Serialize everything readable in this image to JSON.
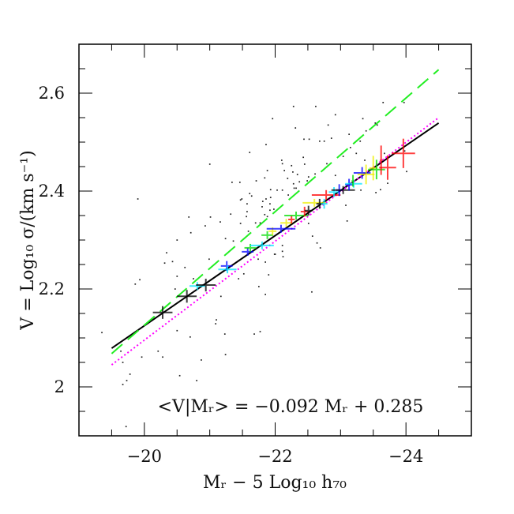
{
  "chart_data": {
    "type": "scatter",
    "title": "",
    "xlabel": "Mᵣ − 5 Log₁₀ h₇₀",
    "ylabel": "V = Log₁₀ σ/(km s⁻¹)",
    "annotation": "<V|Mᵣ> = −0.092 Mᵣ + 0.285",
    "xlim": [
      -19.0,
      -25.0
    ],
    "ylim": [
      1.9,
      2.7
    ],
    "xticks": [
      {
        "value": -20,
        "label": "−20"
      },
      {
        "value": -22,
        "label": "−22"
      },
      {
        "value": -24,
        "label": "−24"
      }
    ],
    "yticks": [
      {
        "value": 2.0,
        "label": "2"
      },
      {
        "value": 2.2,
        "label": "2.2"
      },
      {
        "value": 2.4,
        "label": "2.4"
      },
      {
        "value": 2.6,
        "label": "2.6"
      }
    ],
    "x_minor_step": 0.5,
    "y_minor_step": 0.05,
    "grid": false,
    "colors": {
      "black": "#000000",
      "cyan": "#00e5ff",
      "blue": "#0000ff",
      "green": "#00dd00",
      "yellow": "#f0f000",
      "red": "#ff0000",
      "magenta": "#ff00ff",
      "dashed_green": "#00dd00"
    },
    "lines": [
      {
        "style": "solid",
        "color": "#000000",
        "x": [
          -19.5,
          -24.5
        ],
        "y": [
          2.079,
          2.539
        ]
      },
      {
        "style": "dashed",
        "color": "#22ee22",
        "x": [
          -19.5,
          -24.5
        ],
        "y": [
          2.068,
          2.648
        ]
      },
      {
        "style": "dotted",
        "color": "#ff00ff",
        "x": [
          -19.5,
          -24.5
        ],
        "y": [
          2.045,
          2.55
        ]
      }
    ],
    "scatter": [
      [
        -21.86,
        2.495
      ],
      [
        -21.61,
        2.479
      ],
      [
        -21.0,
        2.455
      ],
      [
        -22.1,
        2.463
      ],
      [
        -21.34,
        2.418
      ],
      [
        -21.46,
        2.418
      ],
      [
        -19.9,
        2.384
      ],
      [
        -21.71,
        2.421
      ],
      [
        -21.64,
        2.39
      ],
      [
        -21.49,
        2.384
      ],
      [
        -21.57,
        2.374
      ],
      [
        -20.68,
        2.347
      ],
      [
        -21.32,
        2.353
      ],
      [
        -21.01,
        2.347
      ],
      [
        -21.16,
        2.337
      ],
      [
        -20.93,
        2.329
      ],
      [
        -20.71,
        2.315
      ],
      [
        -20.5,
        2.3
      ],
      [
        -21.24,
        2.303
      ],
      [
        -21.36,
        2.298
      ],
      [
        -20.34,
        2.274
      ],
      [
        -20.31,
        2.253
      ],
      [
        -20.43,
        2.256
      ],
      [
        -20.99,
        2.261
      ],
      [
        -20.62,
        2.244
      ],
      [
        -19.93,
        2.219
      ],
      [
        -19.86,
        2.21
      ],
      [
        -20.5,
        2.226
      ],
      [
        -20.75,
        2.221
      ],
      [
        -20.47,
        2.2
      ],
      [
        -21.17,
        2.185
      ],
      [
        -21.75,
        2.205
      ],
      [
        -21.85,
        2.189
      ],
      [
        -21.9,
        2.229
      ],
      [
        -21.1,
        2.137
      ],
      [
        -21.09,
        2.129
      ],
      [
        -19.35,
        2.111
      ],
      [
        -20.5,
        2.115
      ],
      [
        -20.7,
        2.102
      ],
      [
        -21.23,
        2.108
      ],
      [
        -21.68,
        2.108
      ],
      [
        -20.21,
        2.073
      ],
      [
        -20.28,
        2.061
      ],
      [
        -19.96,
        2.061
      ],
      [
        -19.64,
        2.073
      ],
      [
        -19.67,
        2.05
      ],
      [
        -20.87,
        2.055
      ],
      [
        -21.24,
        2.066
      ],
      [
        -19.78,
        2.026
      ],
      [
        -19.73,
        2.013
      ],
      [
        -19.67,
        2.005
      ],
      [
        -20.54,
        2.023
      ],
      [
        -20.8,
        2.013
      ],
      [
        -19.72,
        1.919
      ],
      [
        -21.99,
        2.271
      ],
      [
        -22.12,
        2.266
      ],
      [
        -21.52,
        2.231
      ],
      [
        -21.44,
        2.221
      ],
      [
        -21.85,
        2.255
      ],
      [
        -23.97,
        2.581
      ],
      [
        -23.53,
        2.539
      ],
      [
        -23.56,
        2.535
      ],
      [
        -22.81,
        2.535
      ],
      [
        -22.31,
        2.529
      ],
      [
        -23.39,
        2.523
      ],
      [
        -23.13,
        2.516
      ],
      [
        -22.86,
        2.508
      ],
      [
        -22.44,
        2.506
      ],
      [
        -22.52,
        2.506
      ],
      [
        -22.68,
        2.502
      ],
      [
        -22.75,
        2.502
      ],
      [
        -23.3,
        2.502
      ],
      [
        -23.15,
        2.489
      ],
      [
        -23.24,
        2.477
      ],
      [
        -23.04,
        2.471
      ],
      [
        -22.43,
        2.469
      ],
      [
        -23.37,
        2.463
      ],
      [
        -22.79,
        2.456
      ],
      [
        -22.11,
        2.456
      ],
      [
        -22.45,
        2.455
      ],
      [
        -22.25,
        2.452
      ],
      [
        -21.88,
        2.442
      ],
      [
        -22.14,
        2.442
      ],
      [
        -22.61,
        2.435
      ],
      [
        -22.27,
        2.439
      ],
      [
        -22.34,
        2.434
      ],
      [
        -22.92,
        2.432
      ],
      [
        -21.84,
        2.427
      ],
      [
        -22.19,
        2.426
      ],
      [
        -22.51,
        2.429
      ],
      [
        -22.37,
        2.419
      ],
      [
        -22.49,
        2.421
      ],
      [
        -22.28,
        2.415
      ],
      [
        -22.29,
        2.406
      ],
      [
        -22.32,
        2.406
      ],
      [
        -21.93,
        2.403
      ],
      [
        -22.03,
        2.402
      ],
      [
        -22.11,
        2.402
      ],
      [
        -21.61,
        2.395
      ],
      [
        -22.2,
        2.392
      ],
      [
        -21.47,
        2.382
      ],
      [
        -21.93,
        2.387
      ],
      [
        -21.86,
        2.384
      ],
      [
        -21.81,
        2.379
      ],
      [
        -21.92,
        2.374
      ],
      [
        -21.8,
        2.368
      ],
      [
        -21.98,
        2.363
      ],
      [
        -21.92,
        2.361
      ],
      [
        -21.57,
        2.358
      ],
      [
        -21.84,
        2.352
      ],
      [
        -21.88,
        2.348
      ],
      [
        -21.56,
        2.348
      ],
      [
        -21.77,
        2.335
      ],
      [
        -21.7,
        2.335
      ],
      [
        -21.47,
        2.334
      ],
      [
        -22.51,
        2.334
      ],
      [
        -21.59,
        2.318
      ],
      [
        -22.57,
        2.308
      ],
      [
        -22.64,
        2.294
      ],
      [
        -22.69,
        2.284
      ],
      [
        -22.11,
        2.289
      ],
      [
        -22.0,
        2.271
      ],
      [
        -22.11,
        2.277
      ],
      [
        -21.74,
        2.261
      ],
      [
        -23.08,
        2.371
      ],
      [
        -23.31,
        2.402
      ],
      [
        -23.54,
        2.397
      ],
      [
        -23.61,
        2.403
      ],
      [
        -23.72,
        2.416
      ],
      [
        -24.01,
        2.44
      ],
      [
        -23.98,
        2.482
      ],
      [
        -23.67,
        2.477
      ],
      [
        -22.28,
        2.573
      ],
      [
        -22.62,
        2.573
      ],
      [
        -22.92,
        2.556
      ],
      [
        -23.34,
        2.548
      ],
      [
        -23.65,
        2.581
      ],
      [
        -21.96,
        2.548
      ],
      [
        -22.56,
        2.194
      ],
      [
        -23.1,
        2.339
      ],
      [
        -21.77,
        2.113
      ]
    ],
    "binned": [
      {
        "color": "black",
        "x": -20.28,
        "y": 2.152,
        "xerr": 0.15,
        "yerr": 0.013
      },
      {
        "color": "black",
        "x": -20.65,
        "y": 2.185,
        "xerr": 0.15,
        "yerr": 0.013
      },
      {
        "color": "cyan",
        "x": -20.81,
        "y": 2.206,
        "xerr": 0.12,
        "yerr": 0.005
      },
      {
        "color": "black",
        "x": -20.94,
        "y": 2.208,
        "xerr": 0.15,
        "yerr": 0.013
      },
      {
        "color": "blue",
        "x": -21.26,
        "y": 2.247,
        "xerr": 0.09,
        "yerr": 0.01
      },
      {
        "color": "cyan",
        "x": -21.27,
        "y": 2.24,
        "xerr": 0.14,
        "yerr": 0.005
      },
      {
        "color": "blue",
        "x": -21.58,
        "y": 2.276,
        "xerr": 0.09,
        "yerr": 0.008
      },
      {
        "color": "green",
        "x": -21.62,
        "y": 2.284,
        "xerr": 0.09,
        "yerr": 0.008
      },
      {
        "color": "cyan",
        "x": -21.8,
        "y": 2.289,
        "xerr": 0.18,
        "yerr": 0.005
      },
      {
        "color": "green",
        "x": -21.88,
        "y": 2.31,
        "xerr": 0.09,
        "yerr": 0.008
      },
      {
        "color": "yellow",
        "x": -21.96,
        "y": 2.318,
        "xerr": 0.06,
        "yerr": 0.008
      },
      {
        "color": "blue",
        "x": -22.09,
        "y": 2.323,
        "xerr": 0.22,
        "yerr": 0.006
      },
      {
        "color": "yellow",
        "x": -22.17,
        "y": 2.335,
        "xerr": 0.09,
        "yerr": 0.008
      },
      {
        "color": "red",
        "x": -22.25,
        "y": 2.342,
        "xerr": 0.05,
        "yerr": 0.008
      },
      {
        "color": "green",
        "x": -22.32,
        "y": 2.35,
        "xerr": 0.18,
        "yerr": 0.006
      },
      {
        "color": "red",
        "x": -22.45,
        "y": 2.358,
        "xerr": 0.06,
        "yerr": 0.01
      },
      {
        "color": "black",
        "x": -22.51,
        "y": 2.36,
        "xerr": 0.06,
        "yerr": 0.01
      },
      {
        "color": "yellow",
        "x": -22.6,
        "y": 2.376,
        "xerr": 0.18,
        "yerr": 0.006
      },
      {
        "color": "black",
        "x": -22.68,
        "y": 2.374,
        "xerr": 0.05,
        "yerr": 0.01
      },
      {
        "color": "cyan",
        "x": -22.75,
        "y": 2.374,
        "xerr": 0.05,
        "yerr": 0.01
      },
      {
        "color": "red",
        "x": -22.78,
        "y": 2.392,
        "xerr": 0.22,
        "yerr": 0.01
      },
      {
        "color": "cyan",
        "x": -22.9,
        "y": 2.398,
        "xerr": 0.08,
        "yerr": 0.01
      },
      {
        "color": "blue",
        "x": -22.98,
        "y": 2.402,
        "xerr": 0.05,
        "yerr": 0.012
      },
      {
        "color": "black",
        "x": -23.04,
        "y": 2.402,
        "xerr": 0.18,
        "yerr": 0.004
      },
      {
        "color": "blue",
        "x": -23.13,
        "y": 2.413,
        "xerr": 0.06,
        "yerr": 0.012
      },
      {
        "color": "cyan",
        "x": -23.2,
        "y": 2.415,
        "xerr": 0.13,
        "yerr": 0.005
      },
      {
        "color": "green",
        "x": -23.19,
        "y": 2.421,
        "xerr": 0.02,
        "yerr": 0.012
      },
      {
        "color": "blue",
        "x": -23.33,
        "y": 2.437,
        "xerr": 0.13,
        "yerr": 0.012
      },
      {
        "color": "yellow",
        "x": -23.39,
        "y": 2.434,
        "xerr": 0.13,
        "yerr": 0.02
      },
      {
        "color": "yellow",
        "x": -23.5,
        "y": 2.447,
        "xerr": 0.06,
        "yerr": 0.025
      },
      {
        "color": "green",
        "x": -23.55,
        "y": 2.444,
        "xerr": 0.13,
        "yerr": 0.02
      },
      {
        "color": "red",
        "x": -23.62,
        "y": 2.463,
        "xerr": 0.02,
        "yerr": 0.03
      },
      {
        "color": "red",
        "x": -23.72,
        "y": 2.448,
        "xerr": 0.13,
        "yerr": 0.025
      },
      {
        "color": "red",
        "x": -23.96,
        "y": 2.477,
        "xerr": 0.18,
        "yerr": 0.03
      }
    ]
  }
}
